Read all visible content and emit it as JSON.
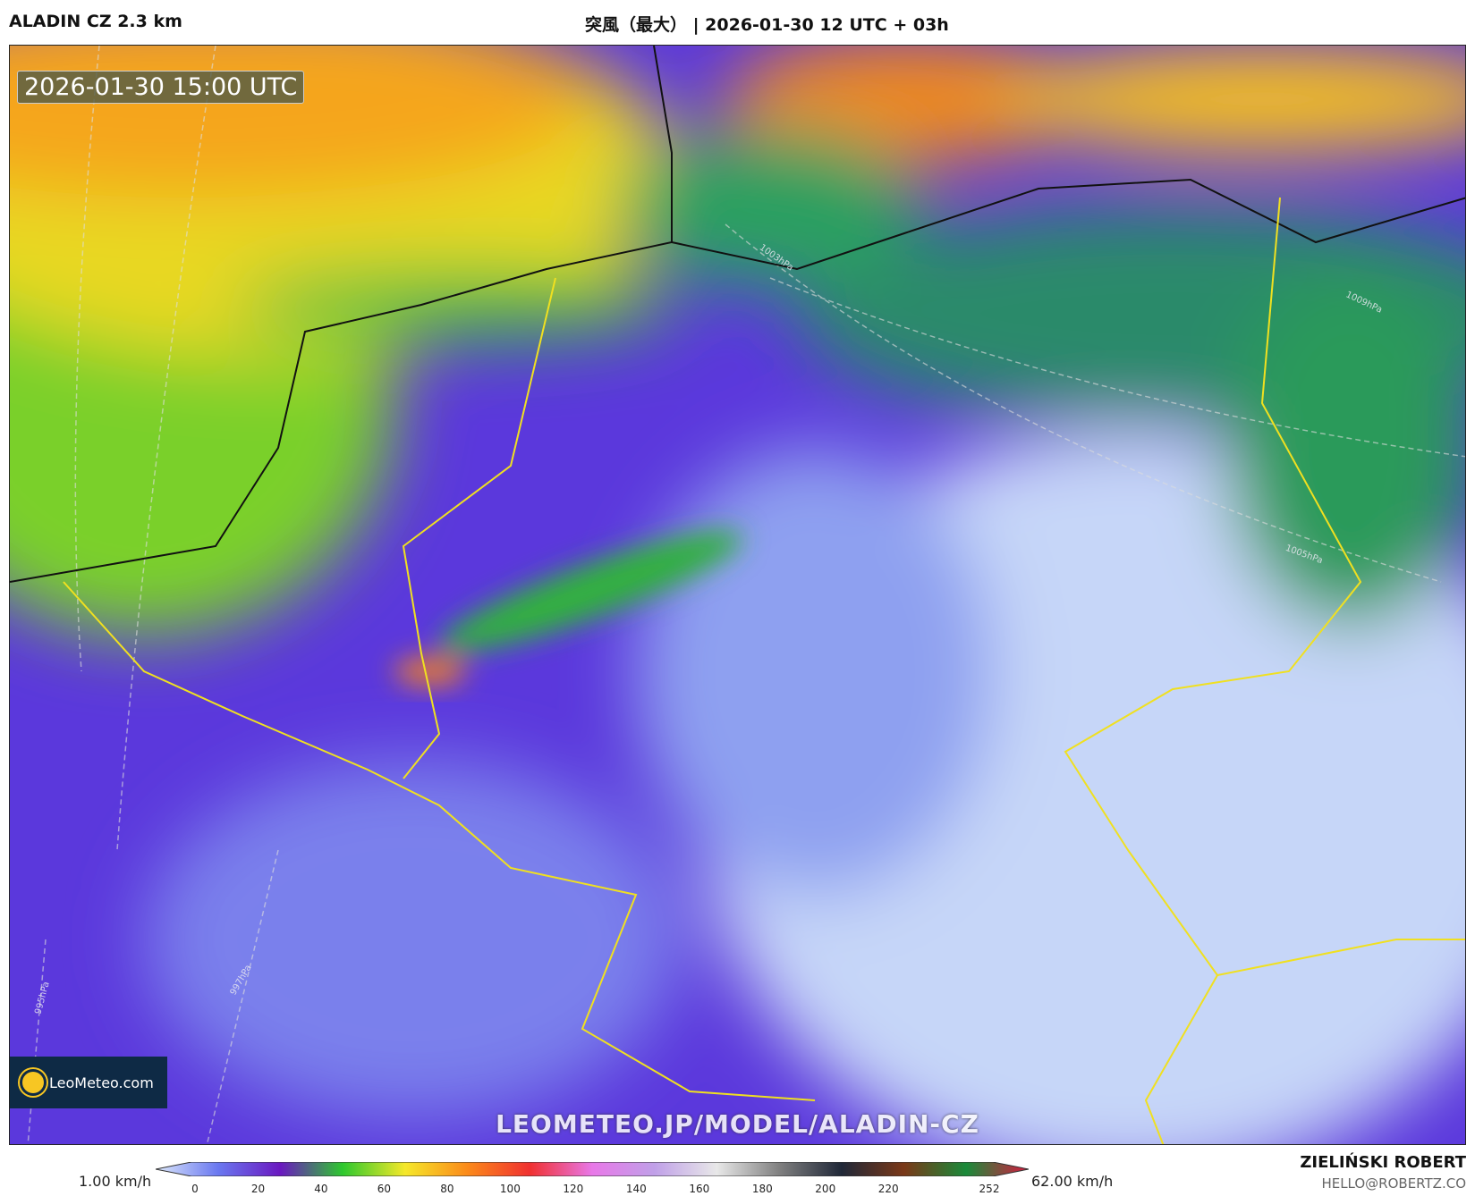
{
  "header": {
    "model": "ALADIN CZ 2.3 km",
    "title": "突風（最大） | 2026-01-30 12 UTC + 03h"
  },
  "map": {
    "valid_time": "2026-01-30 15:00 UTC",
    "logo": "LeoMeteo.com",
    "watermark": "LEOMETEO.JP/MODEL/ALADIN-CZ",
    "isobar_labels": [
      "1003hPa",
      "1005hPa",
      "1009hPa",
      "997hPa",
      "995hPa"
    ]
  },
  "colorbar": {
    "min_label": "1.00 km/h",
    "max_label": "62.00 km/h",
    "ticks": [
      "0",
      "20",
      "40",
      "60",
      "80",
      "100",
      "120",
      "140",
      "160",
      "180",
      "200",
      "220",
      "252"
    ],
    "colors": [
      "#dce8fb",
      "#6a78f0",
      "#6a18c0",
      "#2ec82e",
      "#f5e82a",
      "#fb8a1a",
      "#f03030",
      "#e878e8",
      "#c0a0e8",
      "#e8e8e8",
      "#808080",
      "#202838",
      "#7a3818",
      "#1a8a3a",
      "#d81a40"
    ]
  },
  "author": {
    "name": "ZIELIŃSKI ROBERT",
    "email": "HELLO@ROBERTZ.CO"
  }
}
